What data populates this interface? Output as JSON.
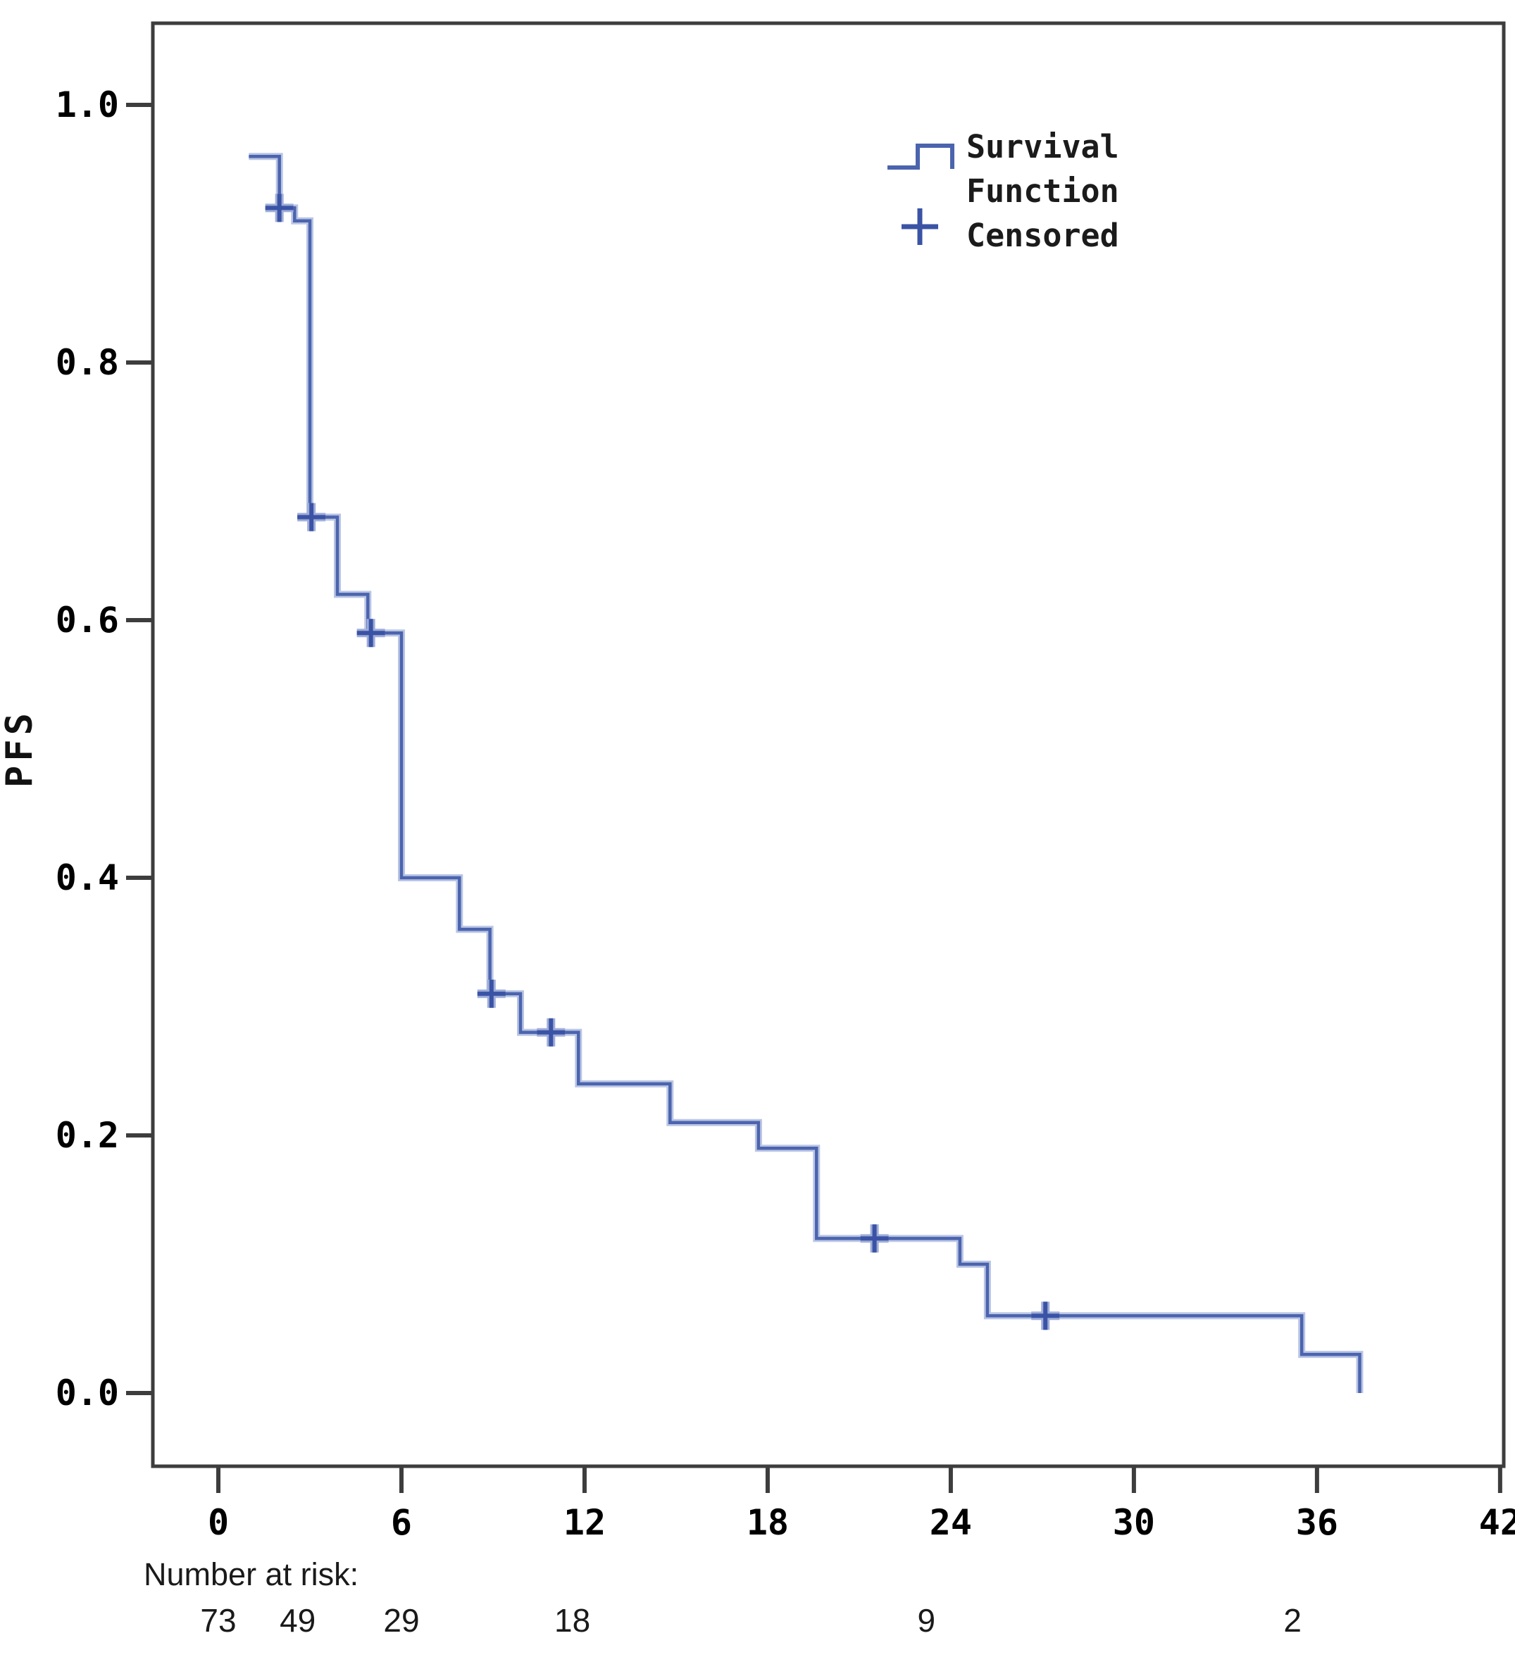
{
  "figure": {
    "background": "#ffffff",
    "y_axis": {
      "title": "PFS",
      "tick_labels": [
        "1.0",
        "0.8",
        "0.6",
        "0.4",
        "0.2",
        "0.0"
      ],
      "tick_values": [
        1.0,
        0.8,
        0.6,
        0.4,
        0.2,
        0.0
      ]
    },
    "x_axis": {
      "tick_labels": [
        "0",
        "6",
        "12",
        "18",
        "24",
        "30",
        "36",
        "42"
      ],
      "tick_values": [
        0,
        6,
        12,
        18,
        24,
        30,
        36,
        42
      ]
    },
    "legend": {
      "survival_line_1": "Survival",
      "survival_line_2": "Function",
      "censored_label": "Censored"
    },
    "at_risk": {
      "title": "Number at risk:",
      "entries": [
        {
          "time": 0,
          "value": "73"
        },
        {
          "time": 2.6,
          "value": "49"
        },
        {
          "time": 6,
          "value": "29"
        },
        {
          "time": 11.6,
          "value": "18"
        },
        {
          "time": 23.2,
          "value": "9"
        },
        {
          "time": 35.2,
          "value": "2"
        }
      ]
    },
    "colors": {
      "curve": "#4b64ae",
      "curve_halo": "#bac5e4",
      "censor": "#3a53a5",
      "censor_halo": "#9fadd8",
      "axis": "#3d3d3d",
      "tick_text": "#000000",
      "legend_text": "#1b1b1b",
      "risk_text": "#1a1a1a"
    }
  },
  "chart_data": {
    "type": "line",
    "subtype": "kaplan-meier-step-function",
    "title": "",
    "xlabel": "",
    "ylabel": "PFS",
    "xlim": [
      0,
      42
    ],
    "ylim": [
      0.0,
      1.0
    ],
    "x_ticks": [
      0,
      6,
      12,
      18,
      24,
      30,
      36,
      42
    ],
    "y_ticks": [
      0.0,
      0.2,
      0.4,
      0.6,
      0.8,
      1.0
    ],
    "grid": false,
    "legend_position": "upper-right-inside",
    "series": [
      {
        "name": "Survival Function",
        "steps_time_survival": [
          [
            1.0,
            0.96
          ],
          [
            2.0,
            0.92
          ],
          [
            2.5,
            0.91
          ],
          [
            3.0,
            0.68
          ],
          [
            3.9,
            0.62
          ],
          [
            4.9,
            0.59
          ],
          [
            6.0,
            0.4
          ],
          [
            7.9,
            0.36
          ],
          [
            8.9,
            0.31
          ],
          [
            9.9,
            0.28
          ],
          [
            11.8,
            0.24
          ],
          [
            14.8,
            0.21
          ],
          [
            17.7,
            0.19
          ],
          [
            19.6,
            0.12
          ],
          [
            24.3,
            0.1
          ],
          [
            25.2,
            0.06
          ],
          [
            35.5,
            0.03
          ],
          [
            37.4,
            0.0
          ]
        ]
      }
    ],
    "censored_points_time_survival": [
      [
        2.0,
        0.92
      ],
      [
        3.05,
        0.68
      ],
      [
        5.0,
        0.59
      ],
      [
        8.95,
        0.31
      ],
      [
        10.9,
        0.28
      ],
      [
        21.5,
        0.12
      ],
      [
        27.1,
        0.06
      ]
    ],
    "number_at_risk": {
      "label": "Number at risk:",
      "values": [
        73,
        49,
        29,
        18,
        9,
        2
      ]
    }
  }
}
